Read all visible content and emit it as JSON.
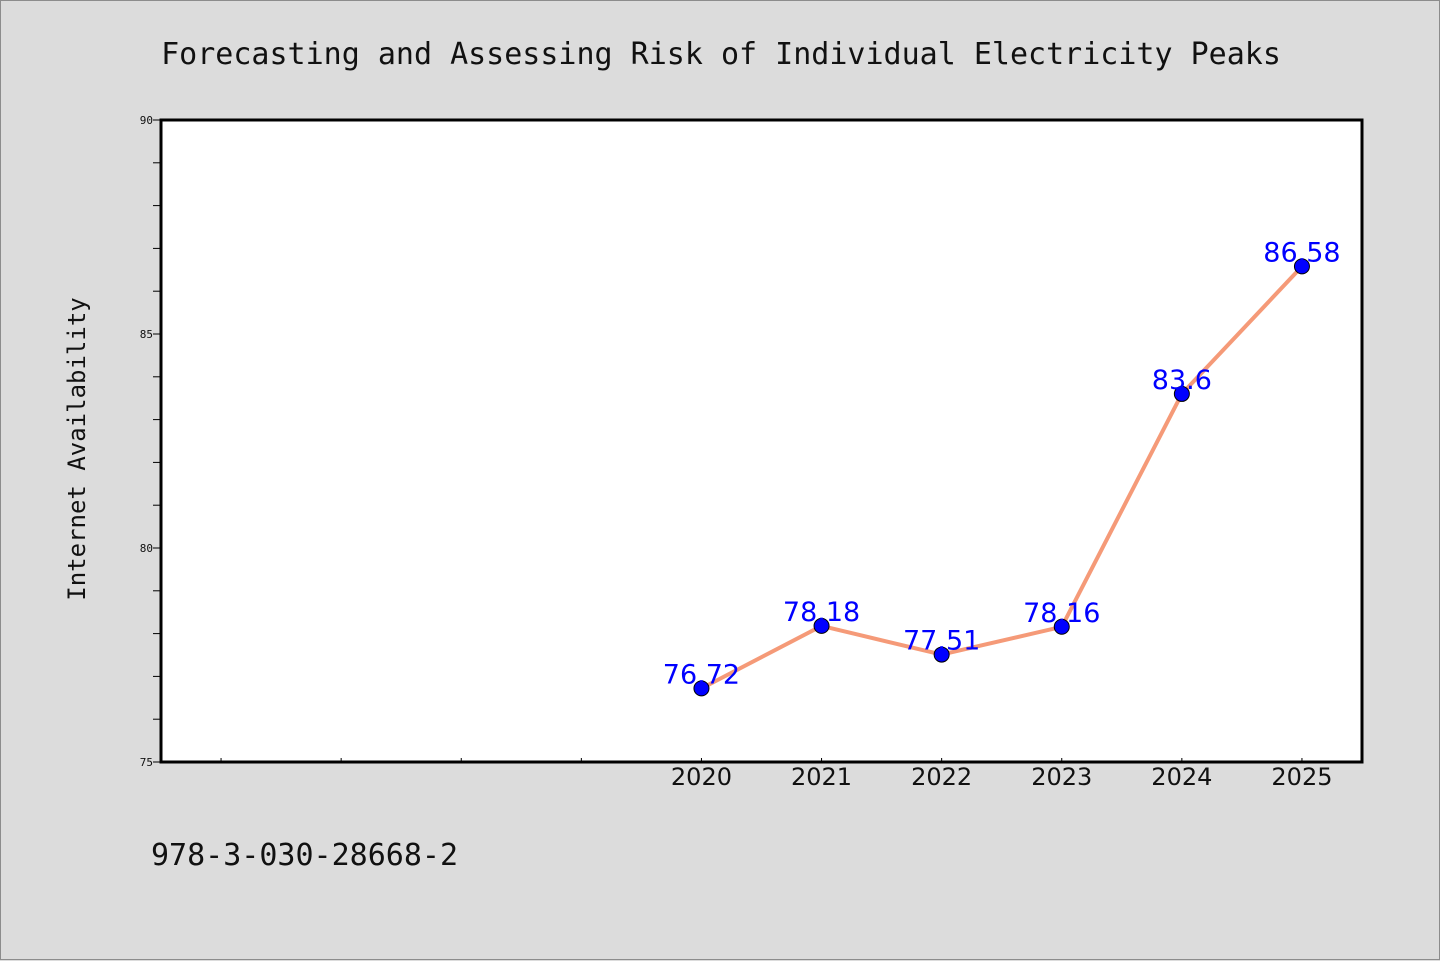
{
  "colors": {
    "background": "#dcdcdc",
    "plot_background": "#ffffff",
    "line": "#f59a78",
    "marker": "#0000ff",
    "data_label": "#0000ff",
    "axis": "#000000"
  },
  "footer": {
    "text": "978-3-030-28668-2"
  },
  "chart_data": {
    "type": "line",
    "title": "Forecasting and Assessing Risk of Individual Electricity Peaks",
    "xlabel": "",
    "ylabel": "Internet Availability",
    "x": [
      2020,
      2021,
      2022,
      2023,
      2024,
      2025
    ],
    "x_tick_labels": [
      "2020",
      "2021",
      "2022",
      "2023",
      "2024",
      "2025"
    ],
    "xlim": [
      2015.5,
      2025.5
    ],
    "ylim": [
      75,
      90
    ],
    "y_ticks": [
      75,
      80,
      85,
      90
    ],
    "series": [
      {
        "values": [
          76.72,
          78.18,
          77.51,
          78.16,
          83.6,
          86.58
        ],
        "labels": [
          "76.72",
          "78.18",
          "77.51",
          "78.16",
          "83.6",
          "86.58"
        ],
        "marker": "circle"
      }
    ],
    "grid": false,
    "legend": "none"
  }
}
